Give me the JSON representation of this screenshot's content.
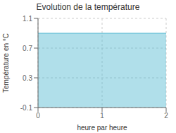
{
  "chart_data": {
    "type": "area",
    "title": "Evolution de la température",
    "xlabel": "heure par heure",
    "ylabel": "Température en °C",
    "x": [
      0,
      2
    ],
    "values": [
      0.9,
      0.9
    ],
    "color": "#50b8d0",
    "xlim": [
      0,
      2
    ],
    "ylim": [
      -0.1,
      1.1
    ],
    "xticks": [
      0,
      1,
      2
    ],
    "yticks": [
      -0.1,
      0.3,
      0.7,
      1.1
    ],
    "grid": true
  }
}
